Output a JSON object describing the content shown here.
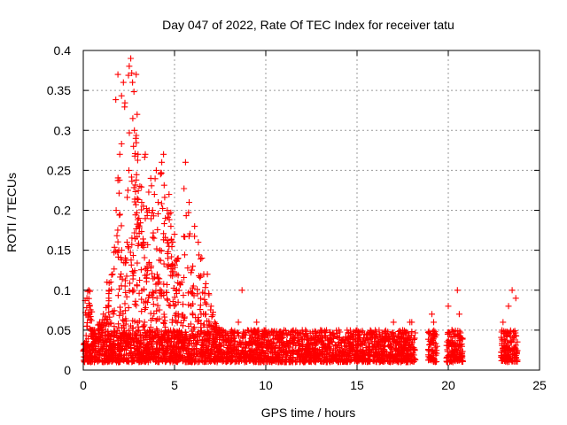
{
  "chart_data": {
    "type": "scatter",
    "title": "Day 047 of 2022, Rate Of TEC Index for receiver tatu",
    "xlabel": "GPS time / hours",
    "ylabel": "ROTI / TECUs",
    "xlim": [
      0,
      25
    ],
    "ylim": [
      0,
      0.4
    ],
    "x_ticks": [
      "0",
      "5",
      "10",
      "15",
      "20",
      "25"
    ],
    "y_ticks": [
      "0",
      "0.05",
      "0.1",
      "0.15",
      "0.2",
      "0.25",
      "0.3",
      "0.35",
      "0.4"
    ],
    "grid": true,
    "marker": "+",
    "color": "#ff0000",
    "x": [
      0.2,
      0.3,
      0.35,
      0.5,
      0.9,
      1.1,
      1.3,
      1.4,
      1.6,
      1.8,
      1.9,
      2.0,
      2.1,
      2.2,
      2.3,
      2.4,
      2.5,
      2.6,
      2.7,
      2.75,
      2.8,
      2.9,
      2.95,
      3.0,
      3.05,
      3.1,
      3.2,
      3.3,
      3.4,
      3.5,
      3.6,
      3.7,
      3.8,
      3.9,
      4.0,
      4.1,
      4.2,
      4.3,
      4.4,
      4.5,
      4.6,
      4.7,
      4.8,
      4.9,
      5.0,
      5.1,
      5.2,
      5.4,
      5.6,
      5.8,
      6.0,
      6.1,
      6.3,
      6.5,
      6.6,
      6.8,
      7.0,
      7.2,
      7.5,
      8.0,
      8.5,
      8.7,
      9.0,
      9.5,
      10.0,
      10.5,
      11.0,
      11.5,
      12.0,
      12.5,
      13.0,
      13.5,
      14.0,
      14.5,
      15.0,
      15.5,
      16.0,
      16.5,
      17.0,
      17.5,
      17.9,
      18.0,
      19.1,
      19.2,
      20.0,
      20.2,
      20.5,
      20.6,
      23.0,
      23.3,
      23.5,
      23.7
    ],
    "y": [
      0.09,
      0.1,
      0.08,
      0.05,
      0.06,
      0.07,
      0.11,
      0.09,
      0.12,
      0.2,
      0.37,
      0.27,
      0.15,
      0.36,
      0.14,
      0.16,
      0.25,
      0.39,
      0.36,
      0.28,
      0.3,
      0.37,
      0.32,
      0.27,
      0.19,
      0.23,
      0.21,
      0.16,
      0.27,
      0.13,
      0.2,
      0.24,
      0.2,
      0.22,
      0.25,
      0.21,
      0.15,
      0.26,
      0.27,
      0.19,
      0.2,
      0.22,
      0.18,
      0.16,
      0.17,
      0.12,
      0.14,
      0.11,
      0.26,
      0.21,
      0.13,
      0.18,
      0.16,
      0.14,
      0.12,
      0.12,
      0.08,
      0.06,
      0.05,
      0.04,
      0.06,
      0.1,
      0.05,
      0.06,
      0.05,
      0.04,
      0.05,
      0.04,
      0.05,
      0.04,
      0.05,
      0.04,
      0.05,
      0.04,
      0.05,
      0.04,
      0.05,
      0.04,
      0.06,
      0.05,
      0.06,
      0.06,
      0.07,
      0.06,
      0.08,
      0.05,
      0.1,
      0.07,
      0.06,
      0.08,
      0.1,
      0.09
    ],
    "dense_band": [
      {
        "x": [
          0.0,
          18.2
        ],
        "y": [
          0.01,
          0.05
        ]
      },
      {
        "x": [
          18.9,
          19.4
        ],
        "y": [
          0.01,
          0.05
        ]
      },
      {
        "x": [
          19.9,
          20.8
        ],
        "y": [
          0.01,
          0.05
        ]
      },
      {
        "x": [
          22.9,
          23.8
        ],
        "y": [
          0.01,
          0.05
        ]
      }
    ]
  }
}
